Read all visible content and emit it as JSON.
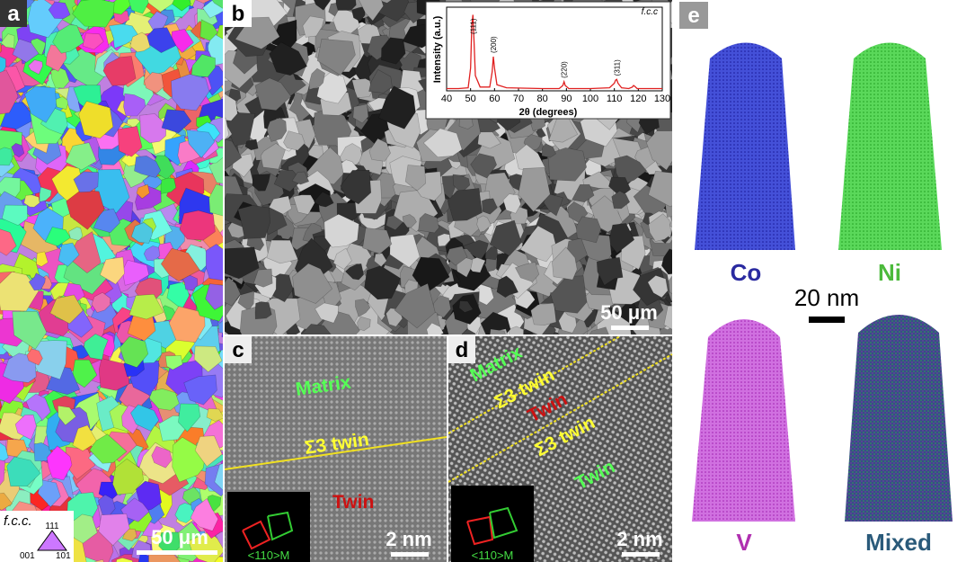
{
  "panels": {
    "a": {
      "label": "a",
      "scale_bar": "50 μm",
      "legend": {
        "title": "f.c.c.",
        "corners": [
          "111",
          "001",
          "101"
        ]
      }
    },
    "b": {
      "label": "b",
      "scale_bar": "50 μm"
    },
    "c": {
      "label": "c",
      "matrix": "Matrix",
      "boundary": "Σ3 twin",
      "twin": "Twin",
      "zone_axis": "<110>M",
      "scale_bar": "2 nm"
    },
    "d": {
      "label": "d",
      "matrix": "Matrix",
      "boundary": "Σ3 twin",
      "twin": "Twin",
      "boundary2": "Σ3 twin",
      "zone_axis": "<110>M",
      "scale_bar": "2 nm"
    },
    "e": {
      "label": "e",
      "maps": [
        "Co",
        "Ni",
        "V",
        "Mixed"
      ],
      "scale_bar": "20 nm"
    }
  },
  "chart_data": {
    "type": "line",
    "annotation": "f.c.c",
    "x_label": "2θ (degrees)",
    "y_label": "Intensity (a.u.)",
    "x": [
      40,
      45,
      49,
      50,
      50.5,
      51,
      51.5,
      52,
      54,
      58,
      59,
      59.5,
      60,
      61,
      65,
      80,
      87,
      88.5,
      89,
      89.5,
      91,
      100,
      108,
      110,
      110.5,
      111,
      111.5,
      113,
      116,
      117.5,
      118,
      118.5,
      119.5,
      122,
      130
    ],
    "series": [
      {
        "color": "#e02020",
        "values": [
          0.03,
          0.03,
          0.04,
          0.3,
          0.85,
          1.0,
          0.6,
          0.2,
          0.05,
          0.05,
          0.25,
          0.45,
          0.3,
          0.08,
          0.04,
          0.03,
          0.03,
          0.07,
          0.12,
          0.07,
          0.03,
          0.03,
          0.04,
          0.1,
          0.14,
          0.15,
          0.1,
          0.04,
          0.03,
          0.05,
          0.07,
          0.06,
          0.03,
          0.03,
          0.03
        ]
      }
    ],
    "peaks": [
      {
        "label": "(111)",
        "x": 51
      },
      {
        "label": "(200)",
        "x": 59.5
      },
      {
        "label": "(220)",
        "x": 89
      },
      {
        "label": "(311)",
        "x": 111
      }
    ],
    "xlim": [
      40,
      130
    ],
    "ylim": [
      0,
      1.1
    ],
    "xticks": [
      40,
      50,
      60,
      70,
      80,
      90,
      100,
      110,
      120,
      130
    ]
  }
}
